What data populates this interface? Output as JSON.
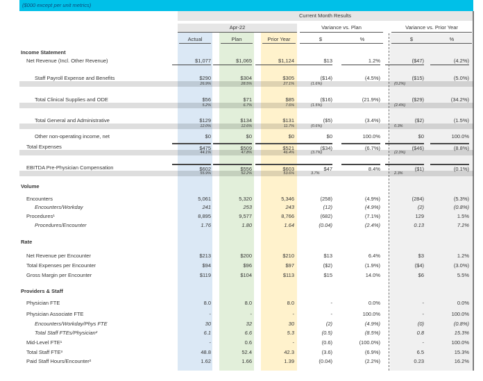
{
  "header": {
    "units": "($000 except per unit metrics)",
    "section": "Current Month Results",
    "period": "Apr-22",
    "var_plan": "Variance vs. Plan",
    "var_py": "Variance vs. Prior Year",
    "columns": [
      "Actual",
      "Plan",
      "Prior Year",
      "$",
      "%",
      "$",
      "%"
    ]
  },
  "rows": [
    {
      "label": "Income Statement",
      "type": "section"
    },
    {
      "label": "Net Revenue (Incl. Other Revenue)",
      "values": [
        "$1,077",
        "$1,065",
        "$1,124",
        "$13",
        "1.2%",
        "($47)",
        "(4.2%)"
      ],
      "indent": 1,
      "ul": true
    },
    {
      "label": "Staff Payroll Expense and Benefits",
      "values": [
        "$290",
        "$304",
        "$305",
        "($14)",
        "(4.5%)",
        "($15)",
        "(5.0%)"
      ],
      "indent": 2
    },
    {
      "type": "pct",
      "values": [
        "26.9%",
        "28.5%",
        "27.1%",
        "(1.6%)",
        "",
        "(0.2%)",
        ""
      ]
    },
    {
      "label": "Total Clinical Supplies and ODE",
      "values": [
        "$56",
        "$71",
        "$85",
        "($16)",
        "(21.9%)",
        "($29)",
        "(34.2%)"
      ],
      "indent": 2
    },
    {
      "type": "pct",
      "values": [
        "5.2%",
        "6.7%",
        "7.6%",
        "(1.5%)",
        "",
        "(2.4%)",
        ""
      ]
    },
    {
      "label": "Total General and Administrative",
      "values": [
        "$129",
        "$134",
        "$131",
        "($5)",
        "(3.4%)",
        "($2)",
        "(1.5%)"
      ],
      "indent": 2
    },
    {
      "type": "pct",
      "values": [
        "12.0%",
        "12.6%",
        "11.7%",
        "(0.6%)",
        "",
        "0.3%",
        ""
      ]
    },
    {
      "label": "Other non-operating income, net",
      "values": [
        "$0",
        "$0",
        "$0",
        "$0",
        "100.0%",
        "$0",
        "100.0%"
      ],
      "indent": 2
    },
    {
      "label": "Total Expenses",
      "values": [
        "$475",
        "$509",
        "$521",
        "($34)",
        "(6.7%)",
        "($46)",
        "(8.8%)"
      ],
      "indent": 1,
      "ol": true
    },
    {
      "type": "pct",
      "values": [
        "44.1%",
        "47.8%",
        "46.4%",
        "(3.7%)",
        "",
        "(2.3%)",
        ""
      ]
    },
    {
      "label": "EBITDA Pre-Physician Compensation",
      "values": [
        "$602",
        "$556",
        "$603",
        "$47",
        "8.4%",
        "($1)",
        "(0.1%)"
      ],
      "indent": 1,
      "ol": true
    },
    {
      "type": "pct",
      "values": [
        "55.9%",
        "52.2%",
        "53.6%",
        "3.7%",
        "",
        "2.3%",
        ""
      ]
    },
    {
      "label": "Volume",
      "type": "section"
    },
    {
      "label": "Encounters",
      "values": [
        "5,061",
        "5,320",
        "5,346",
        "(258)",
        "(4.9%)",
        "(284)",
        "(5.3%)"
      ],
      "indent": 1
    },
    {
      "label": "Encounters/Workday",
      "values": [
        "241",
        "253",
        "243",
        "(12)",
        "(4.9%)",
        "(2)",
        "(0.8%)"
      ],
      "indent": 2,
      "italic": true
    },
    {
      "label": "Procedures¹",
      "values": [
        "8,895",
        "9,577",
        "8,766",
        "(682)",
        "(7.1%)",
        "129",
        "1.5%"
      ],
      "indent": 1
    },
    {
      "label": "Procedures/Encounter",
      "values": [
        "1.76",
        "1.80",
        "1.64",
        "(0.04)",
        "(2.4%)",
        "0.13",
        "7.2%"
      ],
      "indent": 2,
      "italic": true
    },
    {
      "label": "Rate",
      "type": "section"
    },
    {
      "label": "Net Revenue per Encounter",
      "values": [
        "$213",
        "$200",
        "$210",
        "$13",
        "6.4%",
        "$3",
        "1.2%"
      ],
      "indent": 1
    },
    {
      "label": "Total Expenses per Encounter",
      "values": [
        "$94",
        "$96",
        "$97",
        "($2)",
        "(1.9%)",
        "($4)",
        "(3.0%)"
      ],
      "indent": 1
    },
    {
      "label": "Gross Margin per Encounter",
      "values": [
        "$119",
        "$104",
        "$113",
        "$15",
        "14.0%",
        "$6",
        "5.5%"
      ],
      "indent": 1
    },
    {
      "label": "Providers & Staff",
      "type": "section"
    },
    {
      "label": "Physician FTE",
      "values": [
        "8.0",
        "8.0",
        "8.0",
        "-",
        "0.0%",
        "-",
        "0.0%"
      ],
      "indent": 1
    },
    {
      "label": "Physician Associate FTE",
      "values": [
        "-",
        "-",
        "-",
        "-",
        "100.0%",
        "-",
        "100.0%"
      ],
      "indent": 1
    },
    {
      "label": "Encounters/Workday/Phys FTE",
      "values": [
        "30",
        "32",
        "30",
        "(2)",
        "(4.9%)",
        "(0)",
        "(0.8%)"
      ],
      "indent": 2,
      "italic": true
    },
    {
      "label": "Total Staff FTEs/Physician²",
      "values": [
        "6.1",
        "6.6",
        "5.3",
        "(0.5)",
        "(8.5%)",
        "0.8",
        "15.3%"
      ],
      "indent": 2,
      "italic": true
    },
    {
      "label": "Mid-Level FTE¹",
      "values": [
        "-",
        "0.6",
        "-",
        "(0.6)",
        "(100.0%)",
        "-",
        "100.0%"
      ],
      "indent": 1
    },
    {
      "label": "Total Staff FTE³",
      "values": [
        "48.8",
        "52.4",
        "42.3",
        "(3.6)",
        "(6.9%)",
        "6.5",
        "15.3%"
      ],
      "indent": 1
    },
    {
      "label": "Paid Staff Hours/Encounter²",
      "values": [
        "1.62",
        "1.66",
        "1.39",
        "(0.04)",
        "(2.2%)",
        "0.23",
        "16.2%"
      ],
      "indent": 1
    }
  ]
}
